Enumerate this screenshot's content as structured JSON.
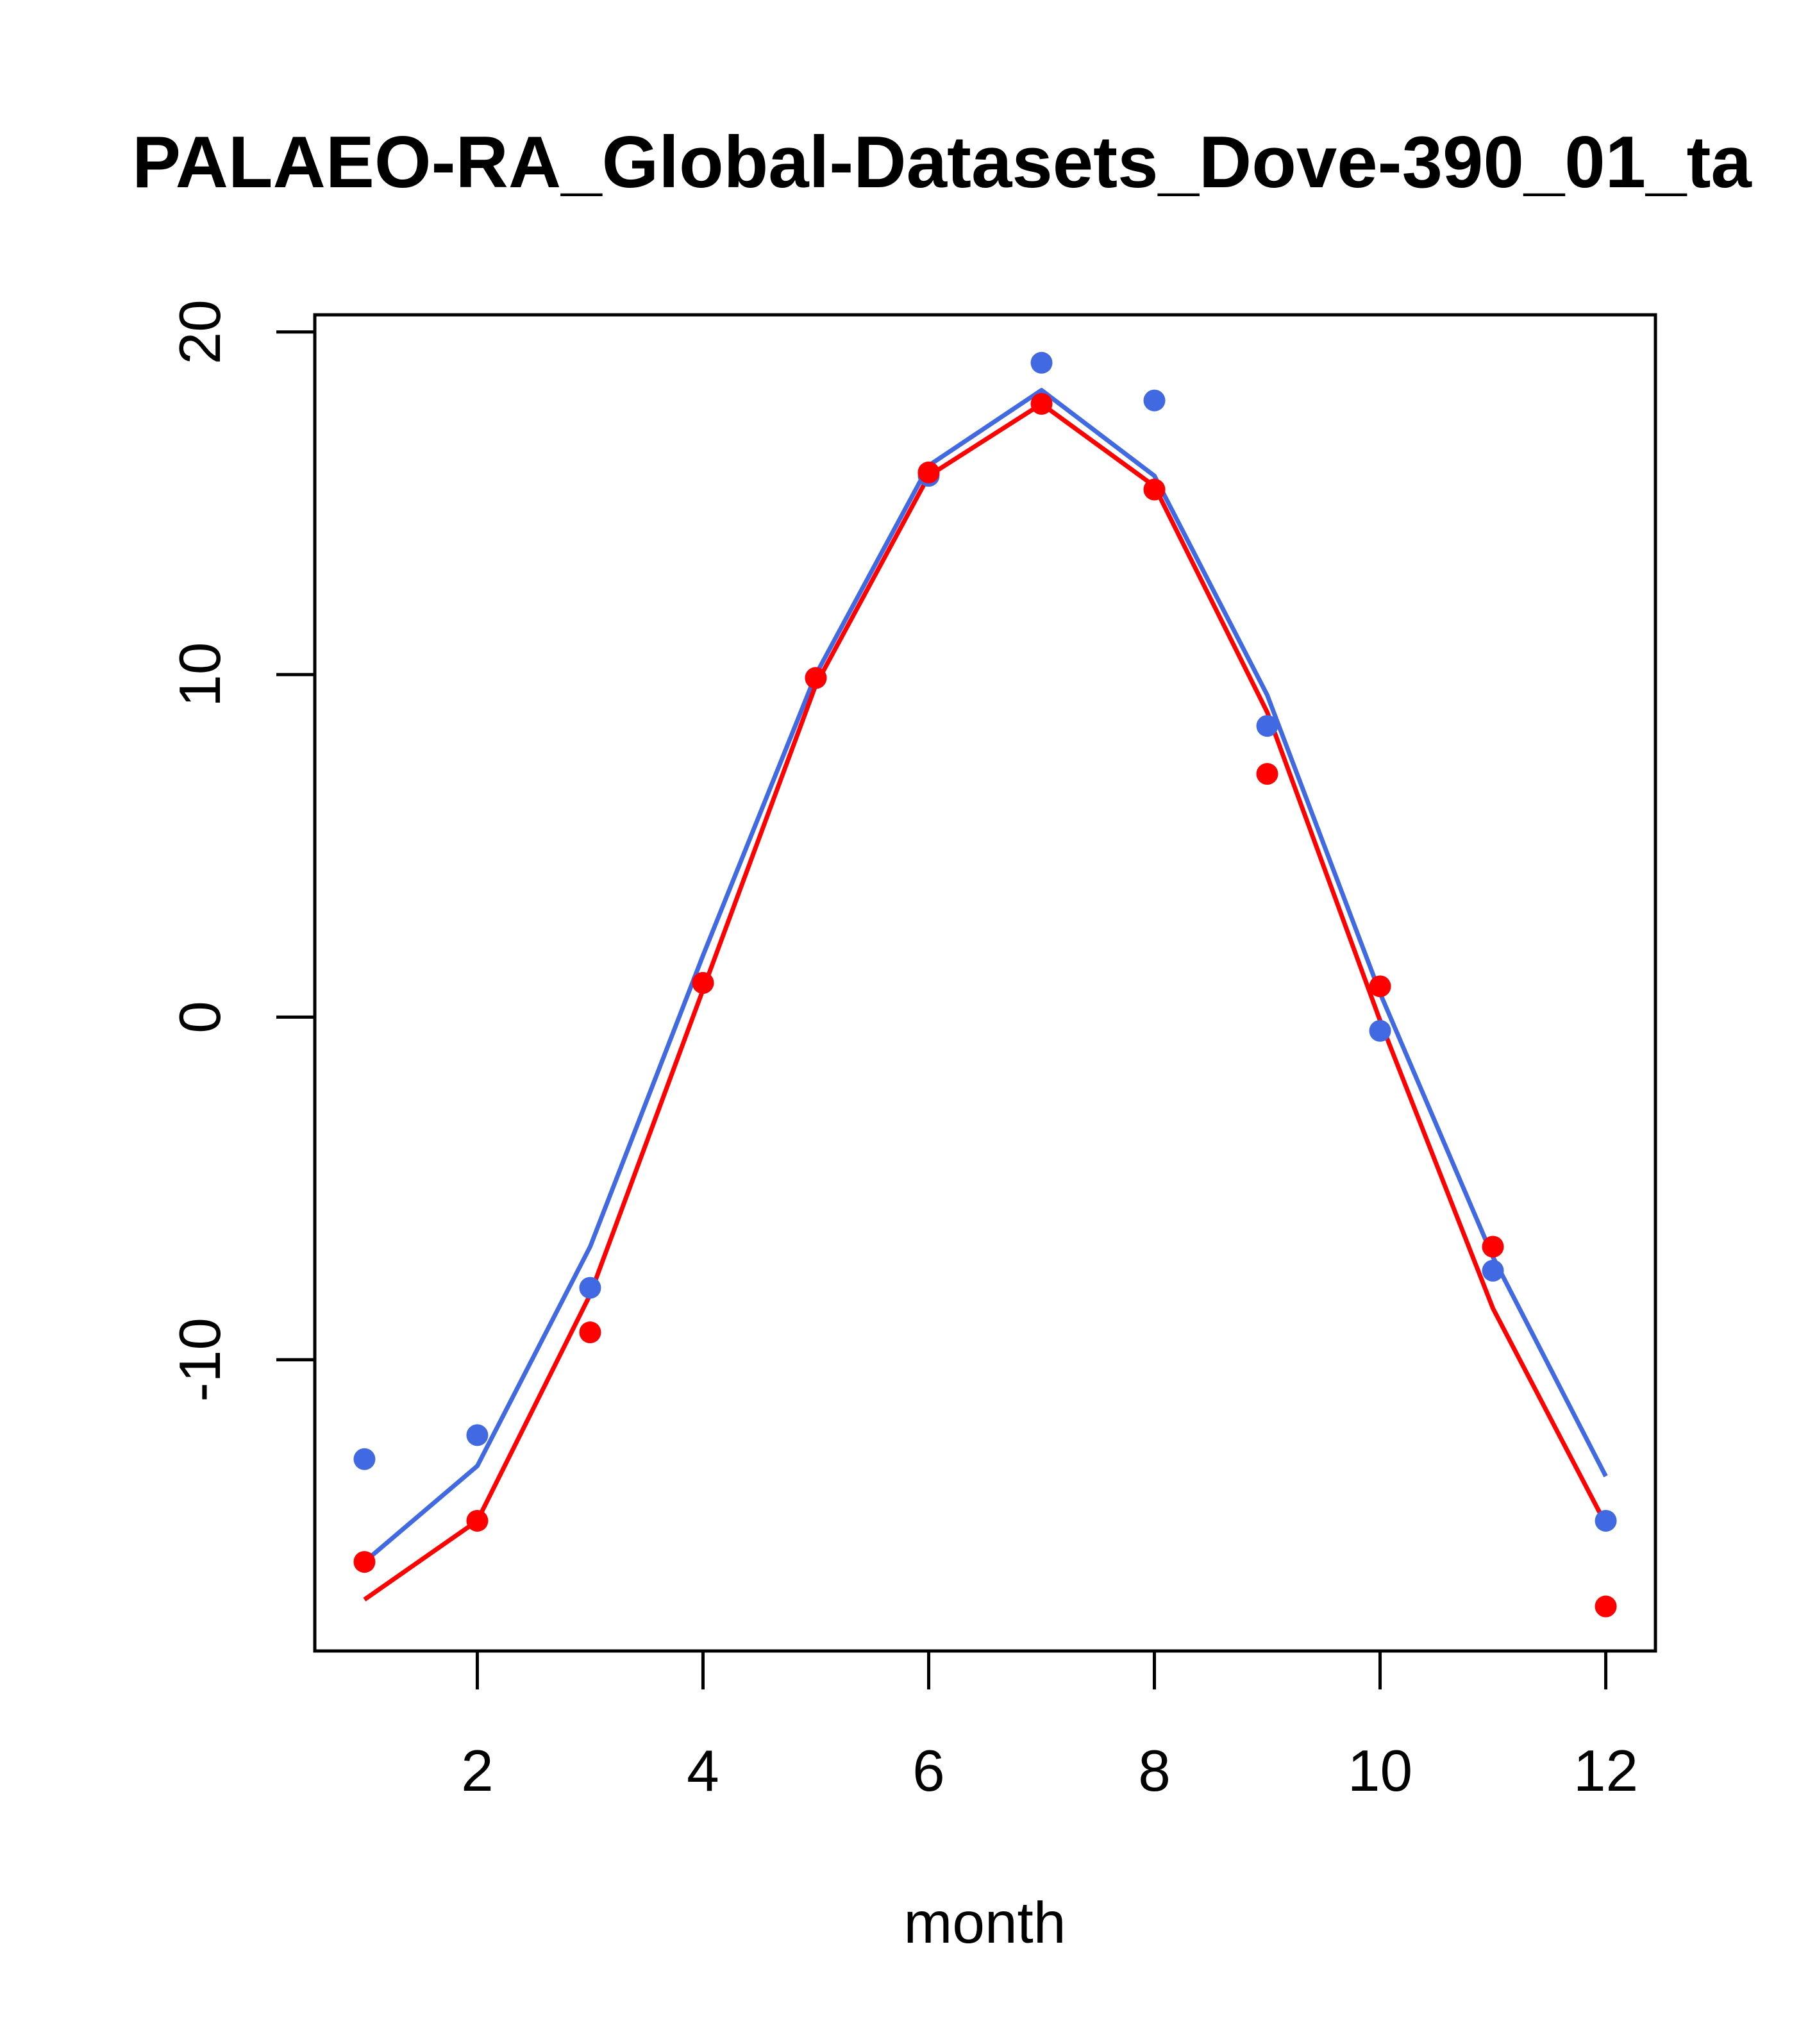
{
  "chart_data": {
    "type": "line",
    "title": "PALAEO-RA_Global-Datasets_Dove-390_01_ta",
    "xlabel": "month",
    "ylabel": "",
    "xlim": [
      0.56,
      12.44
    ],
    "ylim": [
      -18.5,
      20.5
    ],
    "x_ticks": [
      2,
      4,
      6,
      8,
      10,
      12
    ],
    "y_ticks": [
      -10,
      0,
      10,
      20
    ],
    "x": [
      1,
      2,
      3,
      4,
      5,
      6,
      7,
      8,
      9,
      10,
      11,
      12
    ],
    "series": [
      {
        "color": "#4169E1",
        "points": [
          -12.9,
          -12.2,
          -7.9,
          1.0,
          9.9,
          15.8,
          19.1,
          18.0,
          8.5,
          -0.4,
          -7.4,
          -14.7
        ],
        "line": [
          -15.9,
          -13.1,
          -6.7,
          1.8,
          10.0,
          16.1,
          18.3,
          15.8,
          9.4,
          0.7,
          -7.0,
          -13.4
        ]
      },
      {
        "color": "#FF0000",
        "points": [
          -15.9,
          -14.7,
          -9.2,
          1.0,
          9.9,
          15.9,
          17.9,
          15.4,
          7.1,
          0.9,
          -6.7,
          -17.2
        ],
        "line": [
          -17.0,
          -14.7,
          -8.1,
          0.8,
          9.7,
          15.8,
          17.9,
          15.5,
          8.9,
          -0.1,
          -8.5,
          -14.8
        ]
      }
    ],
    "grid": false,
    "legend": "none"
  }
}
